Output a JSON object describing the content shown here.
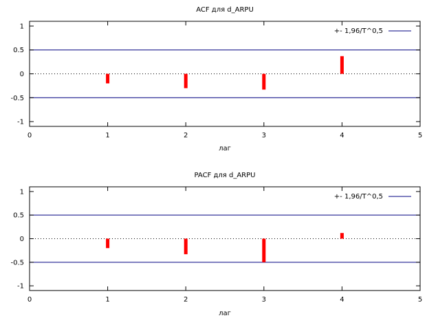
{
  "chart_data": [
    {
      "type": "bar",
      "title": "ACF для d_ARPU",
      "xlabel": "лаг",
      "ylabel": "",
      "xlim": [
        0,
        5
      ],
      "ylim": [
        -1.1,
        1.1
      ],
      "x": [
        1,
        2,
        3,
        4
      ],
      "values": [
        -0.2,
        -0.3,
        -0.33,
        0.37
      ],
      "x_ticks": [
        "0",
        "1",
        "2",
        "3",
        "4",
        "5"
      ],
      "y_ticks": [
        "1",
        "0.5",
        "0",
        "-0.5",
        "-1"
      ],
      "band": 0.5,
      "band_label": "+- 1,96/T^0,5",
      "legend_position": "top-right",
      "grid": false,
      "zero_line": "dotted",
      "bar_color": "#ff0000",
      "band_color": "#000080"
    },
    {
      "type": "bar",
      "title": "PACF для d_ARPU",
      "xlabel": "лаг",
      "ylabel": "",
      "xlim": [
        0,
        5
      ],
      "ylim": [
        -1.1,
        1.1
      ],
      "x": [
        1,
        2,
        3,
        4
      ],
      "values": [
        -0.2,
        -0.33,
        -0.5,
        0.12
      ],
      "x_ticks": [
        "0",
        "1",
        "2",
        "3",
        "4",
        "5"
      ],
      "y_ticks": [
        "1",
        "0.5",
        "0",
        "-0.5",
        "-1"
      ],
      "band": 0.5,
      "band_label": "+- 1,96/T^0,5",
      "legend_position": "top-right",
      "grid": false,
      "zero_line": "dotted",
      "bar_color": "#ff0000",
      "band_color": "#000080"
    }
  ]
}
